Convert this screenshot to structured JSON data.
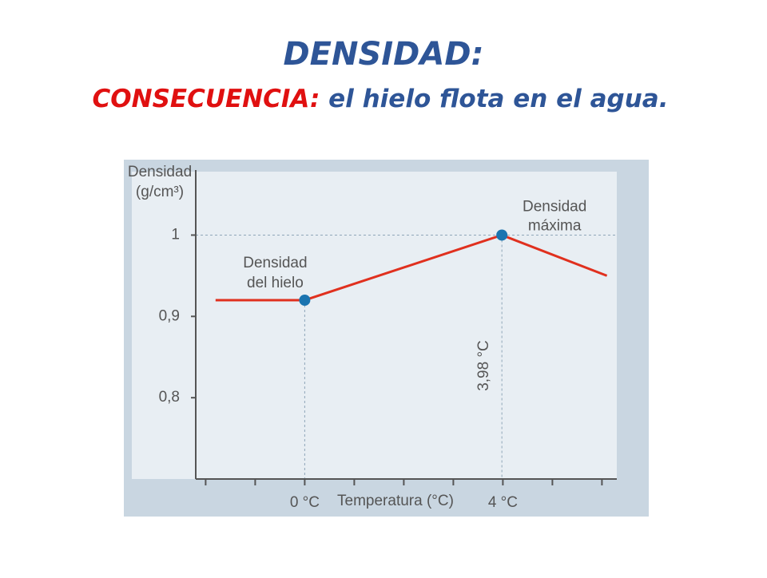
{
  "slide": {
    "title": "DENSIDAD:",
    "subtitle_label": "CONSECUENCIA:",
    "subtitle_text": "el hielo flota en el agua."
  },
  "chart_data": {
    "type": "line",
    "y_label": [
      "Densidad",
      "(g/cm³)"
    ],
    "x_label": "Temperatura (°C)",
    "x": [
      -1.8,
      0,
      3.98,
      6.1
    ],
    "values": [
      0.92,
      0.92,
      1.0,
      0.95
    ],
    "color": "#e0301e",
    "marker_color": "#1a74b0",
    "xlim": [
      -2.2,
      6.3
    ],
    "ylim": [
      0.7,
      1.08
    ],
    "xticks": [
      {
        "value": 0,
        "label": "0 °C"
      },
      {
        "value": 4,
        "label": "4 °C"
      }
    ],
    "xminor_ticks": [
      -2,
      -1,
      1,
      2,
      3,
      5,
      6
    ],
    "yticks": [
      {
        "value": 0.8,
        "label": "0,8"
      },
      {
        "value": 0.9,
        "label": "0,9"
      },
      1
    ],
    "annotations": [
      [
        "Densidad",
        "del hielo"
      ],
      [
        "Densidad",
        "máxima"
      ],
      "3,98 °C"
    ]
  }
}
